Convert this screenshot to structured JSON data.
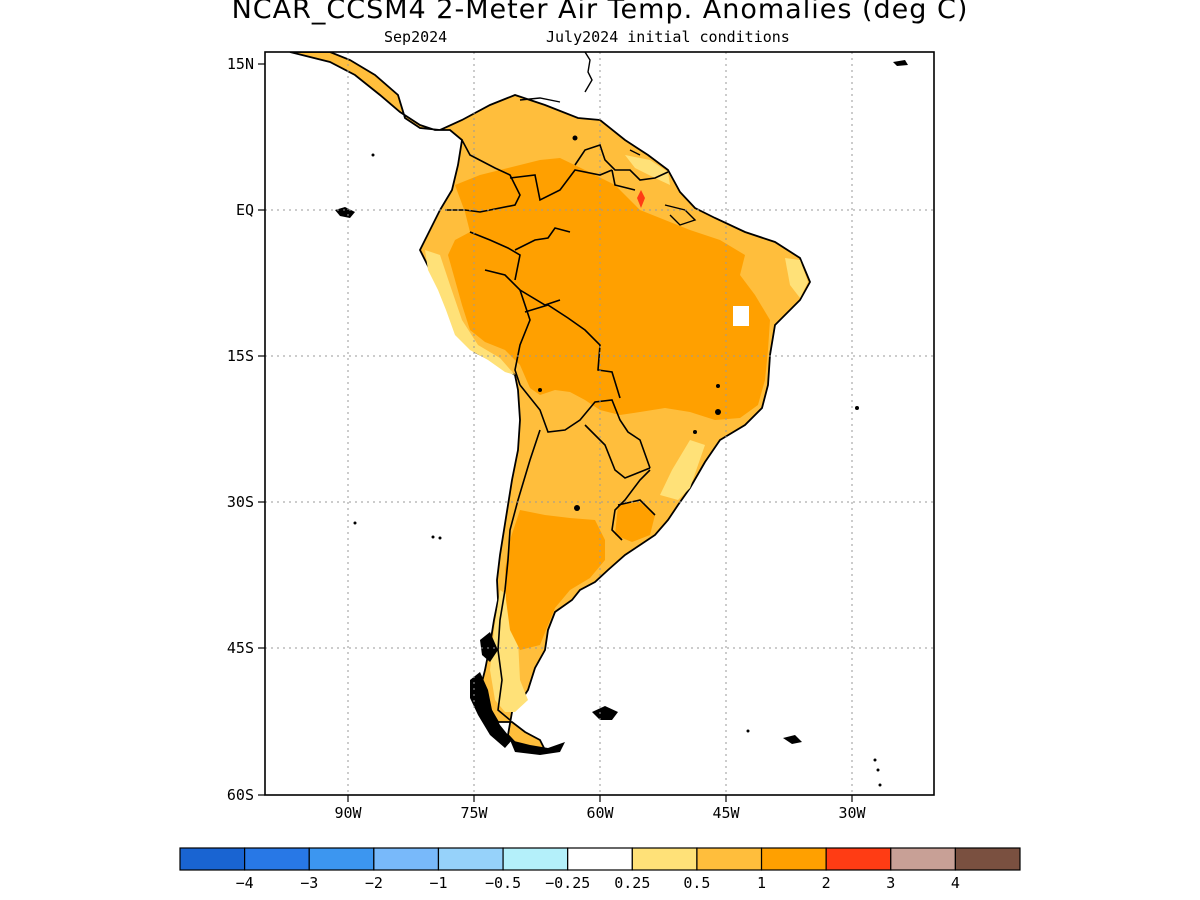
{
  "title": "NCAR_CCSM4 2-Meter Air Temp. Anomalies (deg C)",
  "subtitle_left": "Sep2024",
  "subtitle_right": "July2024 initial conditions",
  "map": {
    "region": "South America",
    "lat_labels": [
      "15N",
      "EQ",
      "15S",
      "30S",
      "45S",
      "60S"
    ],
    "lon_labels": [
      "90W",
      "75W",
      "60W",
      "45W",
      "30W"
    ],
    "grid": "dotted"
  },
  "colorbar": {
    "colors": [
      "#1964d2",
      "#2878e6",
      "#3c96f0",
      "#78b9fa",
      "#96d2fa",
      "#b4f0fa",
      "#ffffff",
      "#ffe178",
      "#ffbe3c",
      "#ffa000",
      "#ff3c14",
      "#c8a096",
      "#7a5040"
    ],
    "labels": [
      "−4",
      "−3",
      "−2",
      "−1",
      "−0.5",
      "−0.25",
      "0.25",
      "0.5",
      "1",
      "2",
      "3",
      "4"
    ]
  },
  "colors": {
    "anomaly_0_25_to_0_5": "#ffe178",
    "anomaly_0_5_to_1": "#ffbe3c",
    "anomaly_1_to_2": "#ffa000",
    "anomaly_2_to_3": "#ff3c14"
  }
}
